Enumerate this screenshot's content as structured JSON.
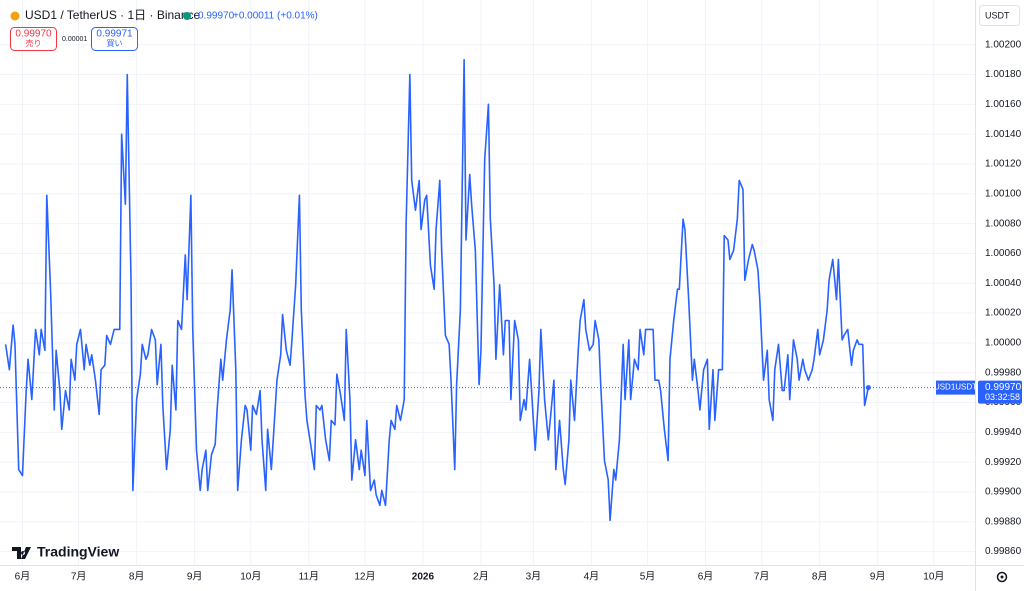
{
  "header": {
    "symbol": "USD1 / TetherUS · 1日 · Binance",
    "last": "0.99970",
    "change": "+0.00011 (+0.01%)",
    "sell_price": "0.99970",
    "sell_label": "売り",
    "spread": "0.00001",
    "buy_price": "0.99971",
    "buy_label": "買い",
    "currency": "USDT",
    "tag_symbol": "USD1USDT",
    "tag_price": "0.99970",
    "tag_countdown": "03:32:58",
    "brand": "TradingView"
  },
  "chart_data": {
    "type": "line",
    "color": "#2962ff",
    "grid": true,
    "x": [
      -9,
      -7,
      -5,
      -4,
      -2,
      0,
      2,
      3,
      5,
      7,
      9,
      10,
      12,
      13,
      15,
      17,
      18,
      20,
      21,
      23,
      25,
      26,
      28,
      29,
      31,
      33,
      34,
      36,
      37,
      39,
      41,
      42,
      44,
      45,
      47,
      49,
      51,
      52,
      53,
      55,
      56,
      58,
      59,
      61,
      63,
      64,
      66,
      67,
      69,
      71,
      72,
      74,
      75,
      77,
      79,
      80,
      82,
      83,
      85,
      87,
      88,
      90,
      91,
      93,
      95,
      96,
      98,
      99,
      101,
      103,
      104,
      106,
      107,
      109,
      111,
      112,
      114,
      115,
      117,
      119,
      120,
      122,
      123,
      125,
      127,
      128,
      130,
      131,
      133,
      135,
      136,
      138,
      139,
      141,
      143,
      144,
      146,
      148,
      149,
      151,
      152,
      154,
      156,
      157,
      159,
      160,
      162,
      164,
      165,
      167,
      168,
      170,
      172,
      173,
      175,
      176,
      178,
      180,
      181,
      183,
      184,
      186,
      188,
      189,
      191,
      192,
      194,
      196,
      197,
      199,
      200,
      202,
      204,
      205,
      207,
      208,
      210,
      212,
      213,
      215,
      216,
      218,
      220,
      221,
      223,
      224,
      226,
      228,
      229,
      231,
      232,
      234,
      236,
      237,
      239,
      240,
      242,
      244,
      245,
      247,
      249,
      250,
      252,
      253,
      255,
      257,
      258,
      260,
      261,
      263,
      265,
      266,
      268,
      269,
      271,
      273,
      274,
      276,
      277,
      279,
      281,
      282,
      284,
      285,
      287,
      289,
      290,
      292,
      293,
      295,
      297,
      298,
      300,
      301,
      303,
      305,
      306,
      308,
      309,
      311,
      313,
      314,
      316,
      317,
      319,
      321,
      322,
      324,
      325,
      327,
      329,
      330,
      332,
      333,
      335,
      337,
      338,
      340,
      341,
      343,
      345,
      346,
      348,
      350,
      351,
      353,
      354,
      356,
      358,
      359,
      361,
      362,
      364,
      366,
      367,
      369,
      370,
      372,
      374,
      375,
      377,
      378,
      380,
      382,
      383,
      385,
      386,
      388,
      390,
      391,
      393,
      394,
      396,
      398,
      399,
      401,
      402,
      404,
      406,
      407,
      409,
      410,
      412,
      414,
      415,
      417,
      418,
      420,
      422,
      423,
      425,
      426,
      428,
      430,
      431,
      433,
      435,
      436,
      438,
      439,
      441,
      443,
      444,
      446,
      447,
      449,
      450,
      452
    ],
    "values": [
      0.99999,
      0.99982,
      1.00012,
      0.99999,
      0.99915,
      0.99911,
      0.99968,
      0.99989,
      0.99962,
      1.00009,
      0.99992,
      1.00009,
      0.99995,
      1.00099,
      1.00036,
      0.99955,
      0.99995,
      0.99968,
      0.99942,
      0.99968,
      0.99955,
      0.99989,
      0.99975,
      0.99999,
      1.00009,
      0.99982,
      0.99999,
      0.99985,
      0.99992,
      0.99975,
      0.99952,
      0.99982,
      0.99985,
      1.00005,
      0.99999,
      1.00009,
      1.00009,
      1.00009,
      1.0014,
      1.00093,
      1.0018,
      1.00042,
      0.99901,
      0.99962,
      0.99979,
      0.99999,
      0.99989,
      0.99992,
      1.00009,
      1.00002,
      0.99972,
      0.99999,
      0.99958,
      0.99915,
      0.99942,
      0.99985,
      0.99955,
      1.00015,
      1.00009,
      1.00059,
      1.00029,
      1.00099,
      1.00009,
      0.99928,
      0.99901,
      0.99915,
      0.99928,
      0.99901,
      0.99925,
      0.99932,
      0.99955,
      0.99989,
      0.99975,
      1.00002,
      1.00022,
      1.00049,
      0.99982,
      0.99901,
      0.99935,
      0.99958,
      0.99955,
      0.99928,
      0.99958,
      0.99952,
      0.99968,
      0.99935,
      0.99901,
      0.99942,
      0.99915,
      0.99955,
      0.99975,
      0.99992,
      1.00019,
      0.99995,
      0.99985,
      1.00002,
      1.00039,
      1.00099,
      1.00022,
      0.99965,
      0.99948,
      0.99932,
      0.99915,
      0.99958,
      0.99955,
      0.99958,
      0.99935,
      0.99921,
      0.99948,
      0.99945,
      0.99979,
      0.99965,
      0.99948,
      1.00009,
      0.99962,
      0.99908,
      0.99935,
      0.99915,
      0.99928,
      0.99911,
      0.99948,
      0.99901,
      0.99908,
      0.99898,
      0.99891,
      0.99901,
      0.99891,
      0.99935,
      0.99948,
      0.99942,
      0.99958,
      0.99948,
      0.99962,
      1.00079,
      1.0018,
      1.00109,
      1.00089,
      1.00109,
      1.00076,
      1.00096,
      1.00099,
      1.00052,
      1.00036,
      1.00076,
      1.00109,
      1.00062,
      1.00005,
      0.99999,
      0.99975,
      0.99915,
      0.99972,
      1.00022,
      1.0019,
      1.00069,
      1.00113,
      1.00093,
      1.00062,
      0.99972,
      0.99995,
      1.00123,
      1.0016,
      1.00083,
      1.00039,
      0.99989,
      1.00039,
      0.99992,
      1.00015,
      1.00015,
      0.99962,
      1.00015,
      1.00002,
      0.99948,
      0.99962,
      0.99955,
      0.99989,
      0.99948,
      0.99928,
      0.99968,
      1.00009,
      0.99962,
      0.99935,
      0.99948,
      0.99975,
      0.99915,
      0.99948,
      0.99915,
      0.99905,
      0.99935,
      0.99975,
      0.99948,
      0.99995,
      1.00015,
      1.00029,
      1.00009,
      0.99995,
      0.99999,
      1.00015,
      1.00002,
      0.99972,
      0.99921,
      0.99908,
      0.99881,
      0.99915,
      0.99908,
      0.99935,
      0.99999,
      0.99962,
      1.00002,
      0.99962,
      0.99989,
      0.99982,
      1.00009,
      0.99992,
      1.00009,
      1.00009,
      1.00009,
      0.99975,
      0.99975,
      0.99968,
      0.99942,
      0.99921,
      0.99989,
      1.00015,
      1.00036,
      1.00036,
      1.00083,
      1.00076,
      1.00029,
      0.99975,
      0.99989,
      0.99968,
      0.99955,
      0.99982,
      0.99989,
      0.99942,
      0.99982,
      0.99948,
      0.99982,
      0.99982,
      1.00072,
      1.00069,
      1.00056,
      1.00062,
      1.00083,
      1.00109,
      1.00103,
      1.00042,
      1.00056,
      1.00066,
      1.00062,
      1.00049,
      1.00029,
      0.99975,
      0.99995,
      0.99962,
      0.99948,
      0.99982,
      0.99999,
      0.99968,
      0.99968,
      0.99992,
      0.99962,
      1.00002,
      0.99989,
      0.99975,
      0.99989,
      0.99982,
      0.99975,
      0.99982,
      0.99989,
      1.00009,
      0.99992,
      1.00002,
      1.00022,
      1.00042,
      1.00056,
      1.00029,
      1.00056,
      1.00002,
      1.00005,
      1.00009,
      0.99985,
      0.99995,
      1.00002,
      0.99999,
      0.99999,
      0.99958,
      0.9997
    ],
    "xlim": [
      -12,
      509
    ],
    "xticks": [
      {
        "value": 0,
        "label": "6月"
      },
      {
        "value": 30,
        "label": "7月"
      },
      {
        "value": 61,
        "label": "8月"
      },
      {
        "value": 92,
        "label": "9月"
      },
      {
        "value": 122,
        "label": "10月"
      },
      {
        "value": 153,
        "label": "11月"
      },
      {
        "value": 183,
        "label": "12月"
      },
      {
        "value": 214,
        "label": "2026"
      },
      {
        "value": 245,
        "label": "2月"
      },
      {
        "value": 273,
        "label": "3月"
      },
      {
        "value": 304,
        "label": "4月"
      },
      {
        "value": 334,
        "label": "5月"
      },
      {
        "value": 365,
        "label": "6月"
      },
      {
        "value": 395,
        "label": "7月"
      },
      {
        "value": 426,
        "label": "8月"
      },
      {
        "value": 457,
        "label": "9月"
      },
      {
        "value": 487,
        "label": "10月"
      }
    ],
    "ylim": [
      0.99851,
      1.0023
    ],
    "yticks": [
      {
        "value": 0.9986,
        "label": "0.99860"
      },
      {
        "value": 0.9988,
        "label": "0.99880"
      },
      {
        "value": 0.999,
        "label": "0.99900"
      },
      {
        "value": 0.9992,
        "label": "0.99920"
      },
      {
        "value": 0.9994,
        "label": "0.99940"
      },
      {
        "value": 0.9996,
        "label": "0.99960"
      },
      {
        "value": 0.9998,
        "label": "0.99980"
      },
      {
        "value": 1,
        "label": "1.00000"
      },
      {
        "value": 1.0002,
        "label": "1.00020"
      },
      {
        "value": 1.0004,
        "label": "1.00040"
      },
      {
        "value": 1.0006,
        "label": "1.00060"
      },
      {
        "value": 1.0008,
        "label": "1.00080"
      },
      {
        "value": 1.001,
        "label": "1.00100"
      },
      {
        "value": 1.0012,
        "label": "1.00120"
      },
      {
        "value": 1.0014,
        "label": "1.00140"
      },
      {
        "value": 1.0016,
        "label": "1.00160"
      },
      {
        "value": 1.0018,
        "label": "1.00180"
      },
      {
        "value": 1.002,
        "label": "1.00200"
      }
    ]
  }
}
